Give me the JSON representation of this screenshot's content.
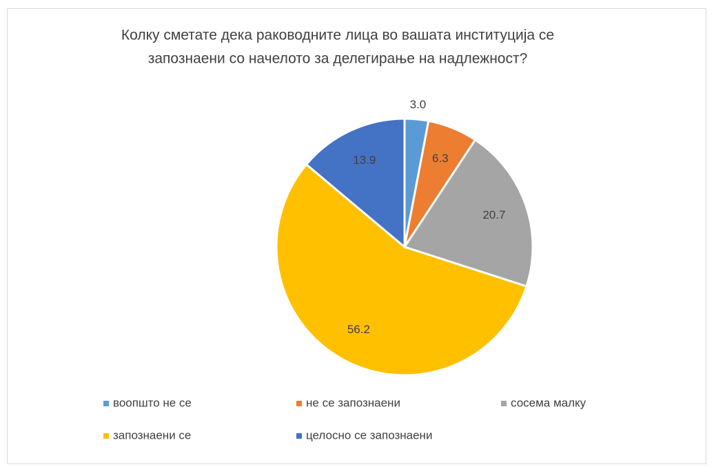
{
  "chart_data": {
    "type": "pie",
    "title": [
      "Колку сметате дека раководните лица во вашата институција се",
      "запознаени со начелото за делегирање на надлежност?"
    ],
    "categories": [
      "воопшто не се",
      "не се запознаени",
      "сосема малку",
      "запознаени се",
      "целосно се запознаени"
    ],
    "values": [
      3.0,
      6.3,
      20.7,
      56.2,
      13.9
    ],
    "value_labels": [
      "3.0",
      "6.3",
      "20.7",
      "56.2",
      "13.9"
    ],
    "colors": [
      "#5b9bd5",
      "#ed7d31",
      "#a5a5a5",
      "#ffc000",
      "#4472c4"
    ],
    "legend": "bottom"
  }
}
